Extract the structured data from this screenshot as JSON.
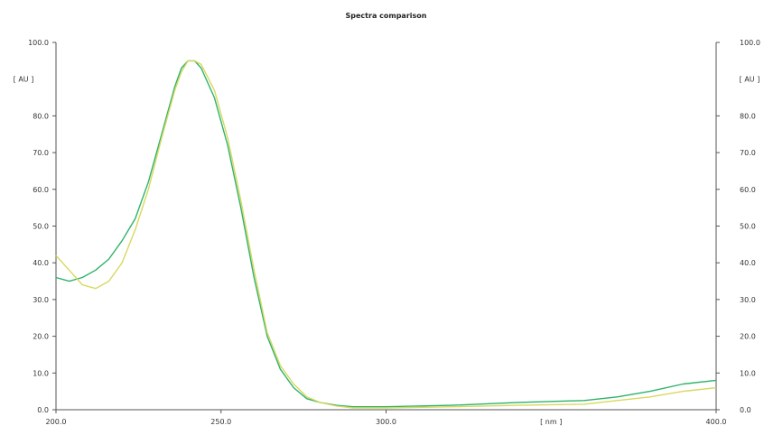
{
  "chart_data": {
    "type": "line",
    "title": "Spectra comparison",
    "xlabel": "[ nm ]",
    "ylabel_left": "[ AU ]",
    "ylabel_right": "[ AU ]",
    "xlim": [
      200,
      400
    ],
    "ylim": [
      0,
      100
    ],
    "x_ticks": [
      200,
      250,
      300,
      400
    ],
    "x_tick_labels": [
      "200.0",
      "250.0",
      "300.0",
      "400.0"
    ],
    "y_ticks": [
      0,
      10,
      20,
      30,
      40,
      50,
      60,
      70,
      80,
      100
    ],
    "y_tick_labels": [
      "0.0",
      "10.0",
      "20.0",
      "30.0",
      "40.0",
      "50.0",
      "60.0",
      "70.0",
      "80.0",
      "100.0"
    ],
    "grid": false,
    "colors": {
      "axis": "#555555",
      "series_green": "#2db36b",
      "series_yellow": "#d8d860"
    },
    "series": [
      {
        "color": "#2db36b",
        "x": [
          200,
          204,
          208,
          212,
          216,
          220,
          224,
          228,
          232,
          236,
          238,
          240,
          242,
          244,
          248,
          252,
          256,
          260,
          264,
          268,
          272,
          276,
          280,
          285,
          290,
          300,
          320,
          340,
          360,
          370,
          380,
          390,
          400
        ],
        "y": [
          36,
          35,
          36,
          38,
          41,
          46,
          52,
          62,
          75,
          88,
          93,
          95,
          95,
          93,
          85,
          72,
          55,
          36,
          20,
          11,
          6,
          3,
          2,
          1.2,
          0.8,
          0.8,
          1.2,
          2,
          2.5,
          3.5,
          5,
          7,
          8
        ]
      },
      {
        "color": "#d8d860",
        "x": [
          200,
          204,
          208,
          212,
          216,
          220,
          224,
          228,
          232,
          236,
          238,
          240,
          242,
          244,
          248,
          252,
          256,
          260,
          264,
          268,
          272,
          276,
          280,
          285,
          290,
          300,
          320,
          340,
          360,
          370,
          380,
          390,
          400
        ],
        "y": [
          42,
          38,
          34,
          33,
          35,
          40,
          49,
          60,
          74,
          87,
          92,
          95,
          95,
          94,
          87,
          74,
          57,
          38,
          21,
          12,
          7,
          3.5,
          2,
          1,
          0.5,
          0.5,
          0.8,
          1.2,
          1.5,
          2.5,
          3.5,
          5,
          6
        ]
      }
    ]
  }
}
